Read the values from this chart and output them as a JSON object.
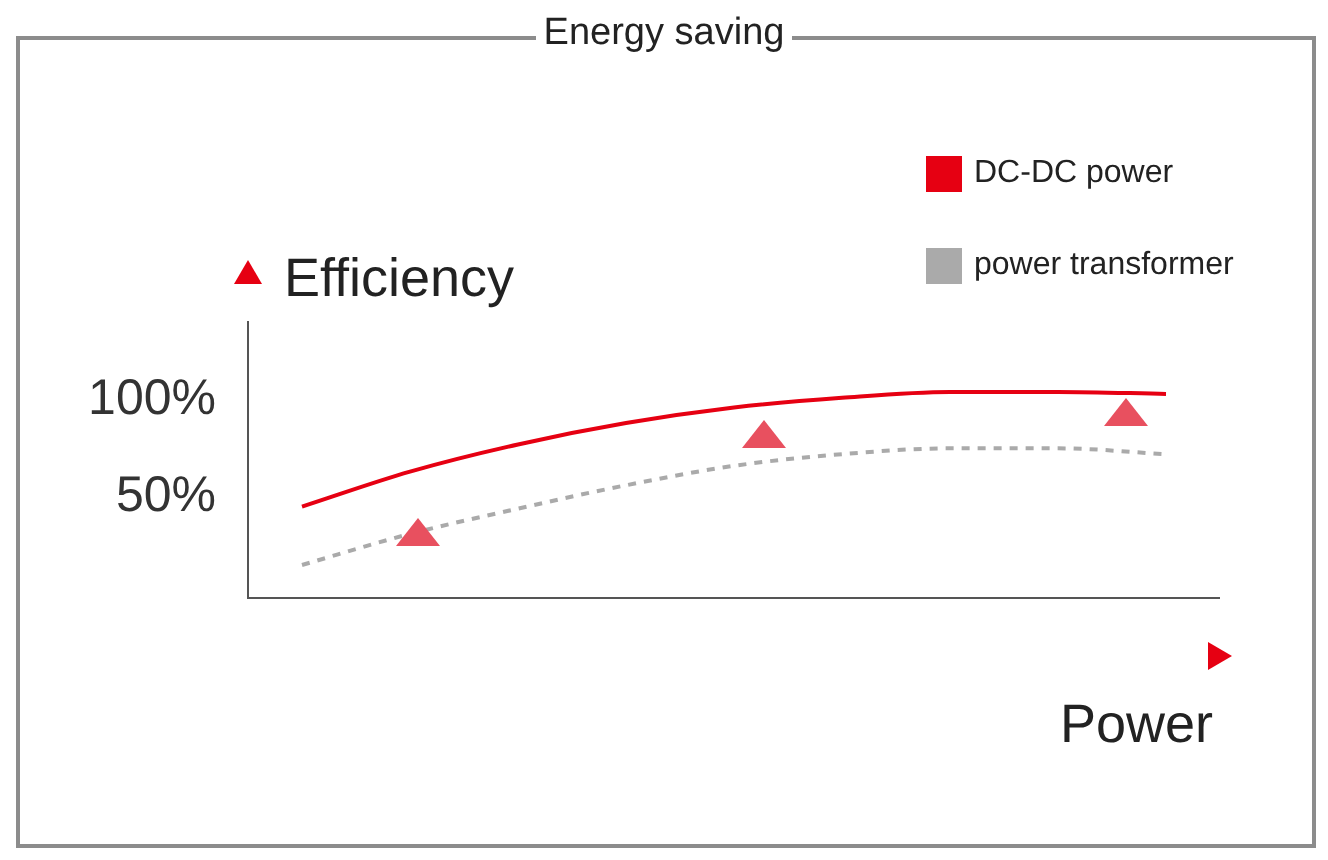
{
  "chart_data": {
    "type": "line",
    "title": "Energy saving",
    "xlabel": "Power",
    "ylabel": "Efficiency",
    "categories": [
      null,
      null,
      null,
      null,
      null,
      null,
      null,
      null,
      null
    ],
    "series": [
      {
        "name": "DC-DC power",
        "color": "#e60012",
        "line_style": "solid",
        "values": [
          45,
          63,
          77,
          88,
          96,
          101,
          104,
          104,
          103
        ]
      },
      {
        "name": "power transformer",
        "color": "#aaaaaa",
        "line_style": "dashed",
        "values": [
          15,
          31,
          44,
          56,
          66,
          72,
          75,
          75,
          72
        ]
      }
    ],
    "ylim": [
      -2,
      140
    ],
    "yticks": [
      {
        "value": 50,
        "label": "50%"
      },
      {
        "value": 100,
        "label": "100%"
      }
    ],
    "tick_labels": "y",
    "grid": false,
    "legend": "top right",
    "marker": "none"
  }
}
